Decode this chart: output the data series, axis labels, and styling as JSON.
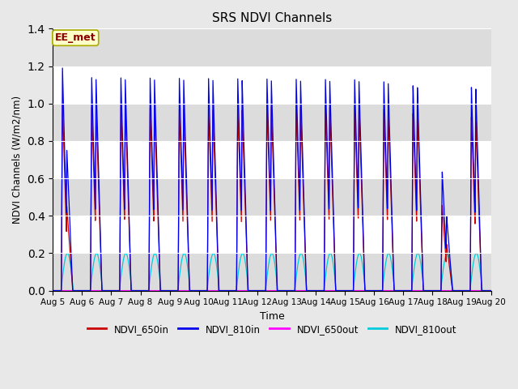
{
  "title": "SRS NDVI Channels",
  "ylabel": "NDVI Channels (W/m2/nm)",
  "xlabel": "Time",
  "annotation_text": "EE_met",
  "annotation_color": "#8B0000",
  "annotation_bg": "#FFFFC8",
  "annotation_border": "#AAAA00",
  "xlim_start": 0.0,
  "xlim_end": 15.0,
  "ylim": [
    0.0,
    1.4
  ],
  "yticks": [
    0.0,
    0.2,
    0.4,
    0.6,
    0.8,
    1.0,
    1.2,
    1.4
  ],
  "fig_bg_color": "#E8E8E8",
  "plot_bg_color": "#FFFFFF",
  "grid_band_color": "#DCDCDC",
  "colors": {
    "NDVI_650in": "#CC0000",
    "NDVI_810in": "#0000EE",
    "NDVI_650out": "#FF00FF",
    "NDVI_810out": "#00CCDD"
  },
  "num_cycles": 15,
  "x_tick_labels": [
    "Aug 5",
    "Aug 6",
    "Aug 7",
    "Aug 8",
    "Aug 9",
    "Aug 10",
    "Aug 11",
    "Aug 12",
    "Aug 13",
    "Aug 14",
    "Aug 15",
    "Aug 16",
    "Aug 17",
    "Aug 18",
    "Aug 19",
    "Aug 20"
  ],
  "x_tick_positions": [
    0,
    1,
    2,
    3,
    4,
    5,
    6,
    7,
    8,
    9,
    10,
    11,
    12,
    13,
    14,
    15
  ],
  "peak_heights_810in_p1": [
    1.19,
    1.14,
    1.14,
    1.14,
    1.14,
    1.14,
    1.14,
    1.14,
    1.14,
    1.14,
    1.14,
    1.13,
    1.11,
    0.64,
    1.09
  ],
  "peak_heights_810in_p2": [
    0.75,
    1.13,
    1.13,
    1.13,
    1.13,
    1.13,
    1.13,
    1.13,
    1.13,
    1.13,
    1.13,
    1.12,
    1.1,
    0.4,
    1.08
  ],
  "peak_heights_650in_p1": [
    1.0,
    0.98,
    1.0,
    0.98,
    0.98,
    0.98,
    0.98,
    1.0,
    1.0,
    1.0,
    1.0,
    0.98,
    0.96,
    0.46,
    0.93
  ],
  "peak_heights_650in_p2": [
    0.45,
    0.97,
    0.99,
    0.97,
    0.97,
    0.97,
    0.97,
    0.99,
    0.99,
    0.99,
    0.99,
    0.97,
    0.95,
    0.25,
    0.91
  ],
  "peak_heights_810out": [
    0.2,
    0.2,
    0.2,
    0.2,
    0.2,
    0.2,
    0.2,
    0.2,
    0.2,
    0.2,
    0.2,
    0.2,
    0.2,
    0.2,
    0.2
  ]
}
